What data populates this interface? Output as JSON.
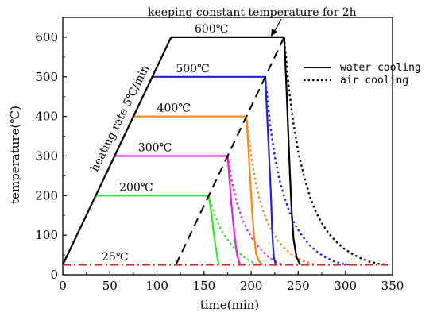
{
  "chart_data": {
    "type": "line",
    "xlabel": "time(min)",
    "ylabel": "temperature(℃)",
    "xlim": [
      0,
      350
    ],
    "ylim": [
      0,
      650
    ],
    "xticks": [
      0,
      50,
      100,
      150,
      200,
      250,
      300,
      350
    ],
    "yticks": [
      0,
      100,
      200,
      300,
      400,
      500,
      600
    ],
    "legend": {
      "position": "top-right",
      "entries": [
        {
          "label": "water cooling",
          "style": "solid"
        },
        {
          "label": "air cooling",
          "style": "dotted"
        }
      ]
    },
    "annotations": {
      "top": "keeping constant temperature for 2h",
      "heating_rate": "heating rate 5℃/min",
      "ambient": "25℃"
    },
    "ambient_line": {
      "y": 25,
      "x": [
        0,
        345
      ],
      "color": "#e0201e",
      "style": "dash-dot"
    },
    "series": [
      {
        "label": "200℃",
        "color": "#2ee82e",
        "heating": [
          [
            0,
            25
          ],
          [
            35,
            200
          ]
        ],
        "hold": [
          [
            35,
            200
          ],
          [
            155,
            200
          ]
        ],
        "water_cooling": [
          [
            155,
            200
          ],
          [
            158,
            150
          ],
          [
            160,
            110
          ],
          [
            162,
            75
          ],
          [
            164,
            45
          ],
          [
            166,
            25
          ]
        ],
        "air_cooling": [
          [
            155,
            200
          ],
          [
            160,
            160
          ],
          [
            165,
            130
          ],
          [
            170,
            105
          ],
          [
            176,
            85
          ],
          [
            182,
            68
          ],
          [
            188,
            53
          ],
          [
            194,
            42
          ],
          [
            200,
            33
          ],
          [
            206,
            27
          ]
        ]
      },
      {
        "label": "300℃",
        "color": "#e61ee6",
        "heating": [
          [
            0,
            25
          ],
          [
            55,
            300
          ]
        ],
        "hold": [
          [
            55,
            300
          ],
          [
            175,
            300
          ]
        ],
        "water_cooling": [
          [
            175,
            300
          ],
          [
            177,
            240
          ],
          [
            179,
            180
          ],
          [
            181,
            130
          ],
          [
            183,
            85
          ],
          [
            185,
            50
          ],
          [
            188,
            25
          ]
        ],
        "air_cooling": [
          [
            175,
            300
          ],
          [
            180,
            230
          ],
          [
            185,
            180
          ],
          [
            190,
            143
          ],
          [
            196,
            112
          ],
          [
            202,
            88
          ],
          [
            208,
            70
          ],
          [
            214,
            55
          ],
          [
            220,
            42
          ],
          [
            226,
            33
          ],
          [
            232,
            27
          ]
        ]
      },
      {
        "label": "400℃",
        "color": "#f7861e",
        "heating": [
          [
            0,
            25
          ],
          [
            75,
            400
          ]
        ],
        "hold": [
          [
            75,
            400
          ],
          [
            195,
            400
          ]
        ],
        "water_cooling": [
          [
            195,
            400
          ],
          [
            197,
            320
          ],
          [
            199,
            240
          ],
          [
            201,
            160
          ],
          [
            203,
            100
          ],
          [
            205,
            55
          ],
          [
            208,
            35
          ],
          [
            212,
            25
          ]
        ],
        "air_cooling": [
          [
            195,
            400
          ],
          [
            200,
            300
          ],
          [
            205,
            230
          ],
          [
            210,
            180
          ],
          [
            216,
            140
          ],
          [
            222,
            110
          ],
          [
            228,
            87
          ],
          [
            235,
            68
          ],
          [
            242,
            53
          ],
          [
            250,
            41
          ],
          [
            258,
            32
          ],
          [
            266,
            27
          ]
        ]
      },
      {
        "label": "500℃",
        "color": "#1e1ee6",
        "heating": [
          [
            0,
            25
          ],
          [
            95,
            500
          ]
        ],
        "hold": [
          [
            95,
            500
          ],
          [
            215,
            500
          ]
        ],
        "water_cooling": [
          [
            215,
            500
          ],
          [
            217,
            400
          ],
          [
            219,
            300
          ],
          [
            221,
            200
          ],
          [
            222,
            130
          ],
          [
            223,
            80
          ],
          [
            224,
            45
          ],
          [
            226,
            25
          ]
        ],
        "air_cooling": [
          [
            215,
            500
          ],
          [
            220,
            380
          ],
          [
            225,
            300
          ],
          [
            230,
            240
          ],
          [
            236,
            190
          ],
          [
            242,
            150
          ],
          [
            248,
            120
          ],
          [
            255,
            95
          ],
          [
            262,
            75
          ],
          [
            270,
            58
          ],
          [
            278,
            45
          ],
          [
            287,
            35
          ],
          [
            296,
            28
          ],
          [
            305,
            25
          ]
        ]
      },
      {
        "label": "600℃",
        "color": "#000000",
        "heating": [
          [
            0,
            25
          ],
          [
            115,
            600
          ]
        ],
        "hold": [
          [
            115,
            600
          ],
          [
            235,
            600
          ]
        ],
        "water_cooling": [
          [
            235,
            600
          ],
          [
            237,
            500
          ],
          [
            239,
            380
          ],
          [
            241,
            260
          ],
          [
            243,
            160
          ],
          [
            245,
            90
          ],
          [
            248,
            45
          ],
          [
            252,
            25
          ]
        ],
        "air_cooling": [
          [
            235,
            600
          ],
          [
            240,
            470
          ],
          [
            245,
            380
          ],
          [
            250,
            310
          ],
          [
            256,
            250
          ],
          [
            262,
            200
          ],
          [
            268,
            162
          ],
          [
            275,
            130
          ],
          [
            282,
            105
          ],
          [
            290,
            84
          ],
          [
            298,
            67
          ],
          [
            307,
            53
          ],
          [
            316,
            42
          ],
          [
            326,
            33
          ],
          [
            336,
            27
          ],
          [
            345,
            25
          ]
        ]
      }
    ],
    "cooling_start_line": {
      "style": "dashed",
      "points": [
        [
          120,
          25
        ],
        [
          235,
          600
        ]
      ]
    }
  }
}
